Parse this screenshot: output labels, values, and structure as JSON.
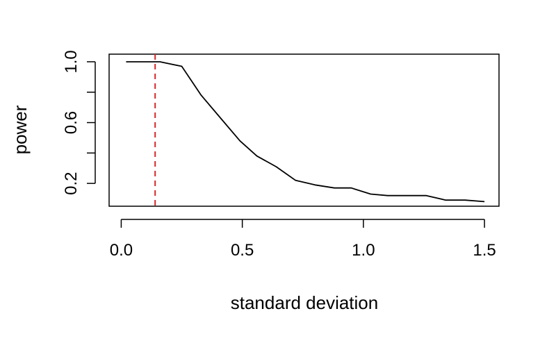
{
  "chart_data": {
    "type": "line",
    "title": "",
    "xlabel": "standard deviation",
    "ylabel": "power",
    "xlim": [
      -0.05,
      1.56
    ],
    "ylim": [
      0.05,
      1.05
    ],
    "x_ticks": [
      0.0,
      0.5,
      1.0,
      1.5
    ],
    "x_tick_labels": [
      "0.0",
      "0.5",
      "1.0",
      "1.5"
    ],
    "y_ticks": [
      0.2,
      0.4,
      0.6,
      0.8,
      1.0
    ],
    "y_tick_labels": [
      "0.2",
      "",
      "0.6",
      "",
      "1.0"
    ],
    "grid": false,
    "legend": "none",
    "series": [
      {
        "color": "#000000",
        "x": [
          0.02,
          0.08,
          0.16,
          0.25,
          0.33,
          0.41,
          0.49,
          0.56,
          0.64,
          0.72,
          0.8,
          0.88,
          0.95,
          1.03,
          1.1,
          1.18,
          1.26,
          1.34,
          1.42,
          1.5
        ],
        "y": [
          1.0,
          1.0,
          1.0,
          0.97,
          0.78,
          0.63,
          0.48,
          0.38,
          0.31,
          0.22,
          0.19,
          0.17,
          0.17,
          0.13,
          0.12,
          0.12,
          0.12,
          0.09,
          0.09,
          0.08
        ]
      }
    ],
    "reference_lines": [
      {
        "orientation": "vertical",
        "x": 0.14,
        "color": "#d62728",
        "style": "dashed"
      }
    ]
  }
}
